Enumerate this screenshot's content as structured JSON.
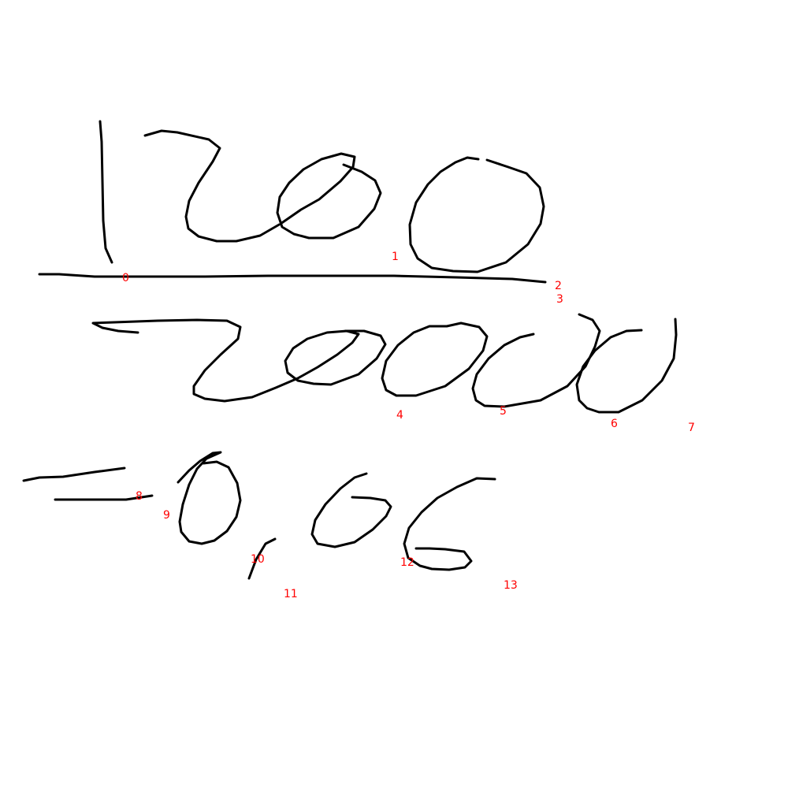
{
  "colors": {
    "background": "#ffffff",
    "ink": "#000000",
    "label": "#ff0000"
  },
  "stroke_labels": [
    "0",
    "1",
    "2",
    "3",
    "4",
    "5",
    "6",
    "7",
    "8",
    "9",
    "10",
    "11",
    "12",
    "13"
  ]
}
